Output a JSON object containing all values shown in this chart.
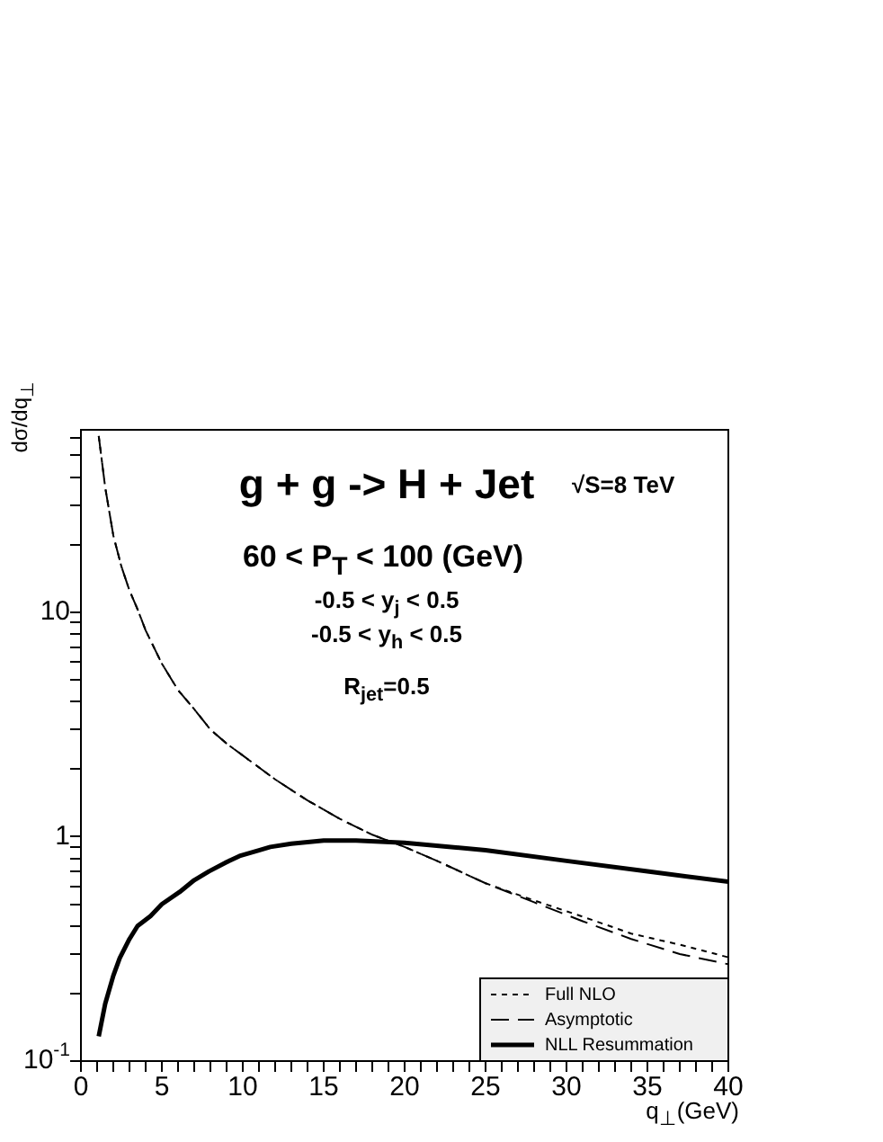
{
  "chart_data": {
    "type": "line",
    "title": "g + g -> H + Jet",
    "xlabel": "q$_{⊥}$(GeV)",
    "ylabel": "dσ/dq$_{⊥}$",
    "annotations": [
      "√S=8 TeV",
      "60 < P$_{T}$ < 100 (GeV)",
      "-0.5 < y$_{j}$ < 0.5",
      "-0.5 < y$_{h}$ < 0.5",
      "R$_{jet}$=0.5"
    ],
    "log": "y",
    "marker": "none",
    "legend": "bottom right",
    "xlim": [
      0,
      40
    ],
    "ylim": [
      0.1,
      65
    ],
    "xticks": [
      0,
      {
        "value": 1,
        "label": null
      },
      {
        "value": 2,
        "label": null
      },
      {
        "value": 3,
        "label": null
      },
      {
        "value": 4,
        "label": null
      },
      5,
      {
        "value": 6,
        "label": null
      },
      {
        "value": 7,
        "label": null
      },
      {
        "value": 8,
        "label": null
      },
      {
        "value": 9,
        "label": null
      },
      10,
      {
        "value": 11,
        "label": null
      },
      {
        "value": 12,
        "label": null
      },
      {
        "value": 13,
        "label": null
      },
      {
        "value": 14,
        "label": null
      },
      15,
      {
        "value": 16,
        "label": null
      },
      {
        "value": 17,
        "label": null
      },
      {
        "value": 18,
        "label": null
      },
      {
        "value": 19,
        "label": null
      },
      20,
      {
        "value": 21,
        "label": null
      },
      {
        "value": 22,
        "label": null
      },
      {
        "value": 23,
        "label": null
      },
      {
        "value": 24,
        "label": null
      },
      25,
      {
        "value": 26,
        "label": null
      },
      {
        "value": 27,
        "label": null
      },
      {
        "value": 28,
        "label": null
      },
      {
        "value": 29,
        "label": null
      },
      30,
      {
        "value": 31,
        "label": null
      },
      {
        "value": 32,
        "label": null
      },
      {
        "value": 33,
        "label": null
      },
      {
        "value": 34,
        "label": null
      },
      35,
      {
        "value": 36,
        "label": null
      },
      {
        "value": 37,
        "label": null
      },
      {
        "value": 38,
        "label": null
      },
      {
        "value": 39,
        "label": null
      },
      40
    ],
    "yticks": [
      {
        "value": 0.1,
        "label": "10$^{-1}$"
      },
      {
        "value": 0.2,
        "label": null
      },
      {
        "value": 0.3,
        "label": null
      },
      {
        "value": 0.4,
        "label": null
      },
      {
        "value": 0.5,
        "label": null
      },
      {
        "value": 0.6,
        "label": null
      },
      {
        "value": 0.7,
        "label": null
      },
      {
        "value": 0.8,
        "label": null
      },
      {
        "value": 0.9,
        "label": null
      },
      1,
      {
        "value": 2,
        "label": null
      },
      {
        "value": 3,
        "label": null
      },
      {
        "value": 4,
        "label": null
      },
      {
        "value": 5,
        "label": null
      },
      {
        "value": 6,
        "label": null
      },
      {
        "value": 7,
        "label": null
      },
      {
        "value": 8,
        "label": null
      },
      {
        "value": 9,
        "label": null
      },
      10,
      {
        "value": 20,
        "label": null
      },
      {
        "value": 30,
        "label": null
      },
      {
        "value": 40,
        "label": null
      },
      {
        "value": 50,
        "label": null
      },
      {
        "value": 60,
        "label": null
      }
    ],
    "series": [
      {
        "name": "Full NLO",
        "color": "#000000",
        "line_style": "dotted",
        "x": [
          1.1,
          1.5,
          2,
          2.5,
          3,
          3.5,
          4,
          5,
          6,
          7,
          8,
          9,
          10,
          12,
          14,
          16,
          18,
          20,
          22,
          25,
          28,
          31,
          34,
          37,
          40
        ],
        "values": [
          61,
          36,
          22,
          16,
          12.5,
          10.3,
          8.3,
          5.9,
          4.5,
          3.7,
          3.0,
          2.6,
          2.3,
          1.8,
          1.45,
          1.2,
          1.02,
          0.9,
          0.78,
          0.62,
          0.52,
          0.44,
          0.37,
          0.33,
          0.29
        ]
      },
      {
        "name": "Asymptotic",
        "color": "#000000",
        "line_style": "dashed",
        "x": [
          1.1,
          1.5,
          2,
          2.5,
          3,
          3.5,
          4,
          5,
          6,
          7,
          8,
          9,
          10,
          12,
          14,
          16,
          18,
          20,
          22,
          25,
          28,
          31,
          34,
          37,
          40
        ],
        "values": [
          61,
          36,
          22,
          16,
          12.5,
          10.3,
          8.3,
          5.9,
          4.5,
          3.7,
          3.0,
          2.6,
          2.3,
          1.8,
          1.45,
          1.2,
          1.02,
          0.9,
          0.78,
          0.62,
          0.51,
          0.42,
          0.35,
          0.3,
          0.27
        ]
      },
      {
        "name": "NLL Resummation",
        "color": "#000000",
        "line_style": "solid",
        "x": [
          1.1,
          1.5,
          2,
          2.4,
          3,
          3.5,
          4.3,
          5,
          6.1,
          7,
          7.9,
          9,
          9.8,
          11,
          11.7,
          13,
          15,
          17,
          20,
          25,
          30,
          35,
          40
        ],
        "values": [
          0.129,
          0.18,
          0.24,
          0.288,
          0.35,
          0.4,
          0.443,
          0.5,
          0.567,
          0.64,
          0.7,
          0.77,
          0.82,
          0.87,
          0.9,
          0.93,
          0.96,
          0.96,
          0.94,
          0.87,
          0.78,
          0.7,
          0.63
        ]
      }
    ]
  }
}
